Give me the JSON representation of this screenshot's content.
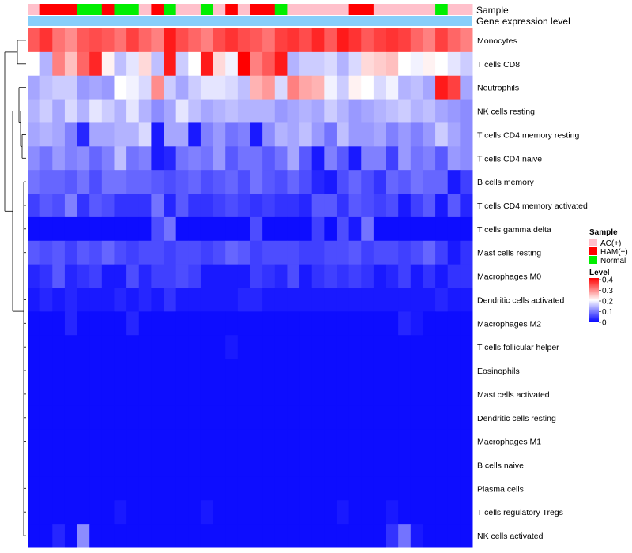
{
  "chart_data": {
    "type": "heatmap",
    "title": "",
    "annotations": {
      "sample_label": "Sample",
      "level_label": "Gene expression level"
    },
    "sample_groups": [
      "AC(+)",
      "HAM(+)",
      "HAM(+)",
      "HAM(+)",
      "Normal",
      "Normal",
      "HAM(+)",
      "Normal",
      "Normal",
      "AC(+)",
      "HAM(+)",
      "Normal",
      "AC(+)",
      "AC(+)",
      "Normal",
      "AC(+)",
      "HAM(+)",
      "AC(+)",
      "HAM(+)",
      "HAM(+)",
      "Normal",
      "AC(+)",
      "AC(+)",
      "AC(+)",
      "AC(+)",
      "AC(+)",
      "HAM(+)",
      "HAM(+)",
      "AC(+)",
      "AC(+)",
      "AC(+)",
      "AC(+)",
      "AC(+)",
      "Normal",
      "AC(+)",
      "AC(+)"
    ],
    "row_labels": [
      "Monocytes",
      "T cells CD8",
      "Neutrophils",
      "NK cells resting",
      "T cells CD4 memory resting",
      "T cells CD4 naive",
      "B cells memory",
      "T cells CD4 memory activated",
      "T cells gamma delta",
      "Mast cells resting",
      "Macrophages M0",
      "Dendritic cells activated",
      "Macrophages M2",
      "T cells follicular helper",
      "Eosinophils",
      "Mast cells activated",
      "Dendritic cells resting",
      "Macrophages M1",
      "B cells naive",
      "Plasma cells",
      "T cells regulatory  Tregs",
      "NK cells activated"
    ],
    "values": [
      [
        0.33,
        0.36,
        0.31,
        0.29,
        0.33,
        0.34,
        0.33,
        0.31,
        0.35,
        0.32,
        0.3,
        0.38,
        0.34,
        0.32,
        0.3,
        0.34,
        0.36,
        0.34,
        0.33,
        0.31,
        0.35,
        0.36,
        0.34,
        0.37,
        0.33,
        0.38,
        0.36,
        0.33,
        0.35,
        0.36,
        0.35,
        0.32,
        0.3,
        0.35,
        0.32,
        0.3
      ],
      [
        0.2,
        0.14,
        0.3,
        0.25,
        0.32,
        0.37,
        0.21,
        0.15,
        0.18,
        0.23,
        0.15,
        0.38,
        0.16,
        0.2,
        0.38,
        0.23,
        0.19,
        0.4,
        0.3,
        0.33,
        0.38,
        0.14,
        0.16,
        0.16,
        0.17,
        0.14,
        0.17,
        0.23,
        0.24,
        0.25,
        0.2,
        0.19,
        0.21,
        0.2,
        0.18,
        0.16
      ],
      [
        0.13,
        0.15,
        0.16,
        0.16,
        0.12,
        0.13,
        0.12,
        0.2,
        0.19,
        0.17,
        0.29,
        0.16,
        0.13,
        0.16,
        0.18,
        0.18,
        0.17,
        0.15,
        0.26,
        0.28,
        0.17,
        0.3,
        0.27,
        0.26,
        0.19,
        0.16,
        0.21,
        0.2,
        0.17,
        0.19,
        0.14,
        0.15,
        0.13,
        0.38,
        0.35,
        0.13
      ],
      [
        0.14,
        0.16,
        0.13,
        0.17,
        0.14,
        0.18,
        0.16,
        0.14,
        0.18,
        0.14,
        0.11,
        0.13,
        0.18,
        0.15,
        0.13,
        0.14,
        0.15,
        0.14,
        0.14,
        0.14,
        0.12,
        0.13,
        0.14,
        0.13,
        0.16,
        0.14,
        0.12,
        0.13,
        0.14,
        0.15,
        0.16,
        0.14,
        0.15,
        0.13,
        0.12,
        0.11
      ],
      [
        0.13,
        0.14,
        0.13,
        0.1,
        0.03,
        0.13,
        0.13,
        0.14,
        0.14,
        0.17,
        0.02,
        0.13,
        0.13,
        0.02,
        0.1,
        0.12,
        0.09,
        0.1,
        0.02,
        0.11,
        0.14,
        0.13,
        0.15,
        0.12,
        0.09,
        0.15,
        0.12,
        0.12,
        0.13,
        0.1,
        0.12,
        0.1,
        0.12,
        0.16,
        0.13,
        0.11
      ],
      [
        0.11,
        0.09,
        0.12,
        0.1,
        0.11,
        0.08,
        0.1,
        0.15,
        0.09,
        0.1,
        0.02,
        0.03,
        0.09,
        0.1,
        0.09,
        0.12,
        0.07,
        0.09,
        0.09,
        0.07,
        0.09,
        0.13,
        0.07,
        0.02,
        0.1,
        0.07,
        0.02,
        0.1,
        0.1,
        0.05,
        0.12,
        0.09,
        0.1,
        0.07,
        0.12,
        0.11
      ],
      [
        0.09,
        0.08,
        0.08,
        0.07,
        0.09,
        0.06,
        0.09,
        0.09,
        0.08,
        0.08,
        0.07,
        0.06,
        0.07,
        0.08,
        0.06,
        0.07,
        0.08,
        0.06,
        0.09,
        0.07,
        0.06,
        0.08,
        0.06,
        0.03,
        0.02,
        0.06,
        0.08,
        0.06,
        0.04,
        0.08,
        0.07,
        0.09,
        0.08,
        0.08,
        0.02,
        0.05
      ],
      [
        0.05,
        0.07,
        0.06,
        0.1,
        0.04,
        0.07,
        0.06,
        0.04,
        0.04,
        0.04,
        0.09,
        0.03,
        0.07,
        0.04,
        0.04,
        0.05,
        0.06,
        0.05,
        0.04,
        0.05,
        0.04,
        0.04,
        0.03,
        0.07,
        0.07,
        0.04,
        0.07,
        0.06,
        0.05,
        0.06,
        0.02,
        0.05,
        0.07,
        0.02,
        0.07,
        0.03
      ],
      [
        0.01,
        0.01,
        0.01,
        0.01,
        0.01,
        0.01,
        0.01,
        0.01,
        0.01,
        0.01,
        0.06,
        0.09,
        0.01,
        0.01,
        0.01,
        0.01,
        0.01,
        0.01,
        0.06,
        0.01,
        0.01,
        0.01,
        0.01,
        0.05,
        0.01,
        0.06,
        0.02,
        0.09,
        0.01,
        0.01,
        0.01,
        0.01,
        0.01,
        0.01,
        0.01,
        0.01
      ],
      [
        0.07,
        0.06,
        0.07,
        0.05,
        0.07,
        0.06,
        0.08,
        0.06,
        0.05,
        0.06,
        0.06,
        0.05,
        0.06,
        0.06,
        0.05,
        0.06,
        0.08,
        0.07,
        0.05,
        0.06,
        0.06,
        0.06,
        0.05,
        0.05,
        0.06,
        0.06,
        0.07,
        0.05,
        0.06,
        0.06,
        0.05,
        0.06,
        0.08,
        0.05,
        0.02,
        0.04
      ],
      [
        0.03,
        0.04,
        0.07,
        0.03,
        0.04,
        0.05,
        0.02,
        0.02,
        0.06,
        0.03,
        0.05,
        0.05,
        0.06,
        0.05,
        0.02,
        0.02,
        0.02,
        0.02,
        0.05,
        0.04,
        0.03,
        0.06,
        0.02,
        0.04,
        0.05,
        0.04,
        0.05,
        0.04,
        0.02,
        0.03,
        0.05,
        0.02,
        0.04,
        0.02,
        0.04,
        0.04
      ],
      [
        0.02,
        0.03,
        0.02,
        0.03,
        0.02,
        0.02,
        0.02,
        0.03,
        0.02,
        0.03,
        0.02,
        0.04,
        0.02,
        0.02,
        0.02,
        0.02,
        0.02,
        0.03,
        0.03,
        0.02,
        0.02,
        0.02,
        0.02,
        0.02,
        0.02,
        0.02,
        0.02,
        0.02,
        0.02,
        0.02,
        0.02,
        0.02,
        0.02,
        0.03,
        0.02,
        0.02
      ],
      [
        0.01,
        0.01,
        0.01,
        0.03,
        0.01,
        0.01,
        0.01,
        0.01,
        0.03,
        0.01,
        0.01,
        0.01,
        0.01,
        0.01,
        0.01,
        0.01,
        0.01,
        0.01,
        0.01,
        0.01,
        0.01,
        0.01,
        0.01,
        0.01,
        0.01,
        0.01,
        0.01,
        0.01,
        0.01,
        0.01,
        0.03,
        0.02,
        0.01,
        0.01,
        0.01,
        0.01
      ],
      [
        0.01,
        0.01,
        0.01,
        0.01,
        0.01,
        0.01,
        0.01,
        0.01,
        0.01,
        0.01,
        0.01,
        0.01,
        0.01,
        0.01,
        0.01,
        0.01,
        0.02,
        0.01,
        0.01,
        0.01,
        0.01,
        0.01,
        0.01,
        0.01,
        0.01,
        0.01,
        0.01,
        0.01,
        0.01,
        0.01,
        0.01,
        0.01,
        0.01,
        0.01,
        0.01,
        0.01
      ],
      [
        0.01,
        0.01,
        0.01,
        0.01,
        0.01,
        0.01,
        0.01,
        0.01,
        0.01,
        0.01,
        0.01,
        0.01,
        0.01,
        0.01,
        0.01,
        0.01,
        0.01,
        0.01,
        0.01,
        0.01,
        0.01,
        0.01,
        0.01,
        0.01,
        0.01,
        0.01,
        0.01,
        0.01,
        0.01,
        0.01,
        0.01,
        0.01,
        0.01,
        0.01,
        0.01,
        0.01
      ],
      [
        0.01,
        0.01,
        0.01,
        0.01,
        0.01,
        0.01,
        0.01,
        0.01,
        0.01,
        0.01,
        0.01,
        0.01,
        0.01,
        0.01,
        0.01,
        0.01,
        0.01,
        0.01,
        0.01,
        0.01,
        0.01,
        0.01,
        0.01,
        0.01,
        0.01,
        0.01,
        0.01,
        0.01,
        0.01,
        0.01,
        0.01,
        0.01,
        0.01,
        0.01,
        0.01,
        0.01
      ],
      [
        0.01,
        0.01,
        0.01,
        0.01,
        0.01,
        0.01,
        0.01,
        0.01,
        0.01,
        0.01,
        0.01,
        0.01,
        0.01,
        0.01,
        0.01,
        0.01,
        0.01,
        0.01,
        0.01,
        0.01,
        0.01,
        0.01,
        0.01,
        0.01,
        0.01,
        0.01,
        0.01,
        0.01,
        0.01,
        0.01,
        0.01,
        0.01,
        0.01,
        0.01,
        0.01,
        0.01
      ],
      [
        0.01,
        0.01,
        0.01,
        0.01,
        0.01,
        0.01,
        0.01,
        0.01,
        0.01,
        0.01,
        0.01,
        0.01,
        0.01,
        0.01,
        0.01,
        0.01,
        0.01,
        0.01,
        0.01,
        0.01,
        0.01,
        0.01,
        0.01,
        0.01,
        0.01,
        0.01,
        0.01,
        0.01,
        0.01,
        0.01,
        0.01,
        0.01,
        0.01,
        0.01,
        0.01,
        0.01
      ],
      [
        0.01,
        0.01,
        0.01,
        0.01,
        0.01,
        0.01,
        0.01,
        0.01,
        0.01,
        0.01,
        0.01,
        0.01,
        0.01,
        0.01,
        0.01,
        0.01,
        0.01,
        0.01,
        0.01,
        0.01,
        0.01,
        0.01,
        0.01,
        0.01,
        0.01,
        0.01,
        0.01,
        0.01,
        0.01,
        0.01,
        0.01,
        0.01,
        0.01,
        0.01,
        0.01,
        0.01
      ],
      [
        0.01,
        0.01,
        0.01,
        0.01,
        0.01,
        0.01,
        0.01,
        0.01,
        0.01,
        0.01,
        0.01,
        0.01,
        0.01,
        0.01,
        0.01,
        0.01,
        0.01,
        0.01,
        0.01,
        0.01,
        0.01,
        0.01,
        0.01,
        0.01,
        0.01,
        0.01,
        0.01,
        0.01,
        0.01,
        0.01,
        0.01,
        0.01,
        0.01,
        0.01,
        0.01,
        0.01
      ],
      [
        0.01,
        0.01,
        0.01,
        0.01,
        0.01,
        0.01,
        0.01,
        0.02,
        0.01,
        0.01,
        0.01,
        0.01,
        0.01,
        0.01,
        0.02,
        0.01,
        0.01,
        0.01,
        0.01,
        0.01,
        0.01,
        0.01,
        0.01,
        0.01,
        0.01,
        0.02,
        0.01,
        0.01,
        0.01,
        0.02,
        0.01,
        0.01,
        0.01,
        0.01,
        0.01,
        0.01
      ],
      [
        0.01,
        0.01,
        0.03,
        0.01,
        0.11,
        0.01,
        0.01,
        0.01,
        0.01,
        0.01,
        0.01,
        0.01,
        0.01,
        0.01,
        0.01,
        0.01,
        0.01,
        0.01,
        0.01,
        0.01,
        0.01,
        0.01,
        0.01,
        0.01,
        0.01,
        0.01,
        0.01,
        0.01,
        0.01,
        0.04,
        0.09,
        0.02,
        0.01,
        0.01,
        0.01,
        0.01
      ]
    ],
    "color_scale": {
      "min": 0,
      "mid": 0.2,
      "max": 0.4,
      "low_color": "#0000ff",
      "mid_color": "#ffffff",
      "high_color": "#ff0000"
    },
    "legend": {
      "sample_title": "Sample",
      "sample_entries": [
        {
          "label": "AC(+)",
          "color": "#ffc0cb"
        },
        {
          "label": "HAM(+)",
          "color": "#ff0000"
        },
        {
          "label": "Normal",
          "color": "#00ee00"
        }
      ],
      "level_title": "Level",
      "level_ticks": [
        "0.4",
        "0.3",
        "0.2",
        "0.1",
        "0"
      ]
    },
    "level_bar_color": "#87cefa"
  }
}
